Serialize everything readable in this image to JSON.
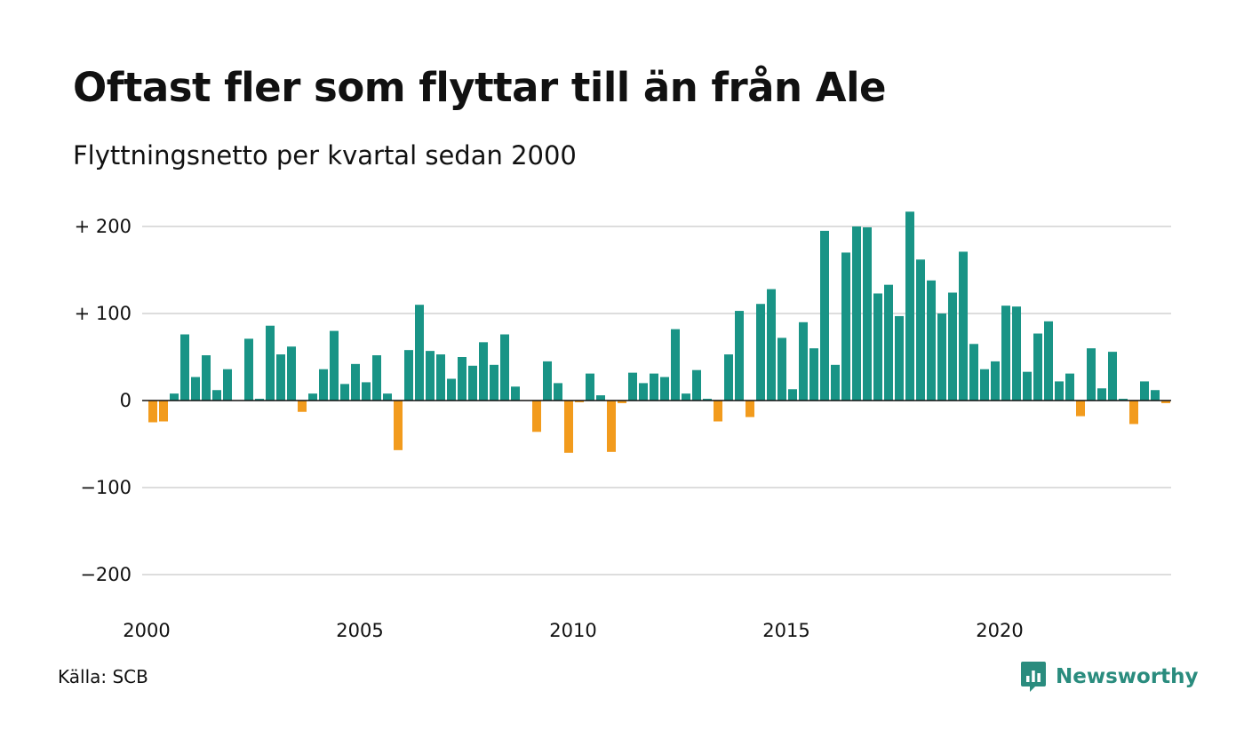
{
  "title": "Oftast fler som flyttar till än från Ale",
  "subtitle": "Flyttningsnetto per kvartal sedan 2000",
  "source": "Källa: SCB",
  "brand": {
    "name": "Newsworthy",
    "icon": "newsworthy-logo-icon",
    "color": "#2a8c7e"
  },
  "chart_data": {
    "type": "bar",
    "title": "Oftast fler som flyttar till än från Ale",
    "subtitle": "Flyttningsnetto per kvartal sedan 2000",
    "xlabel": "",
    "ylabel": "",
    "ylim": [
      -200,
      220
    ],
    "xlim": [
      "2000-Q1",
      "2024-Q1"
    ],
    "yticks": [
      {
        "value": 200,
        "label": "+ 200"
      },
      {
        "value": 100,
        "label": "+ 100"
      },
      {
        "value": 0,
        "label": "0"
      },
      {
        "value": -100,
        "label": "−100"
      },
      {
        "value": -200,
        "label": "−200"
      }
    ],
    "xticks": [
      "2000",
      "2005",
      "2010",
      "2015",
      "2020"
    ],
    "grid": true,
    "legend": "none",
    "colors": {
      "positive": "#199486",
      "negative": "#f29b1d",
      "gridline": "#dddddd",
      "baseline": "#111111"
    },
    "series": [
      {
        "values": [
          -25,
          -24,
          8,
          76,
          27,
          52,
          12,
          36,
          0,
          71,
          2,
          86,
          53,
          62,
          -13,
          8,
          36,
          80,
          19,
          42,
          21,
          52,
          8,
          -57,
          58,
          110,
          57,
          53,
          25,
          50,
          40,
          67,
          41,
          76,
          16,
          0,
          -36,
          45,
          20,
          -60,
          -2,
          31,
          6,
          -59,
          -3,
          32,
          20,
          31,
          27,
          82,
          8,
          35,
          2,
          -24,
          53,
          103,
          -19,
          111,
          128,
          72,
          13,
          90,
          60,
          195,
          41,
          170,
          200,
          199,
          123,
          133,
          97,
          217,
          162,
          138,
          100,
          124,
          171,
          65,
          36,
          45,
          109,
          108,
          33,
          77,
          91,
          22,
          31,
          -18,
          60,
          14,
          56,
          2,
          -27,
          22,
          12,
          -3
        ]
      }
    ]
  }
}
